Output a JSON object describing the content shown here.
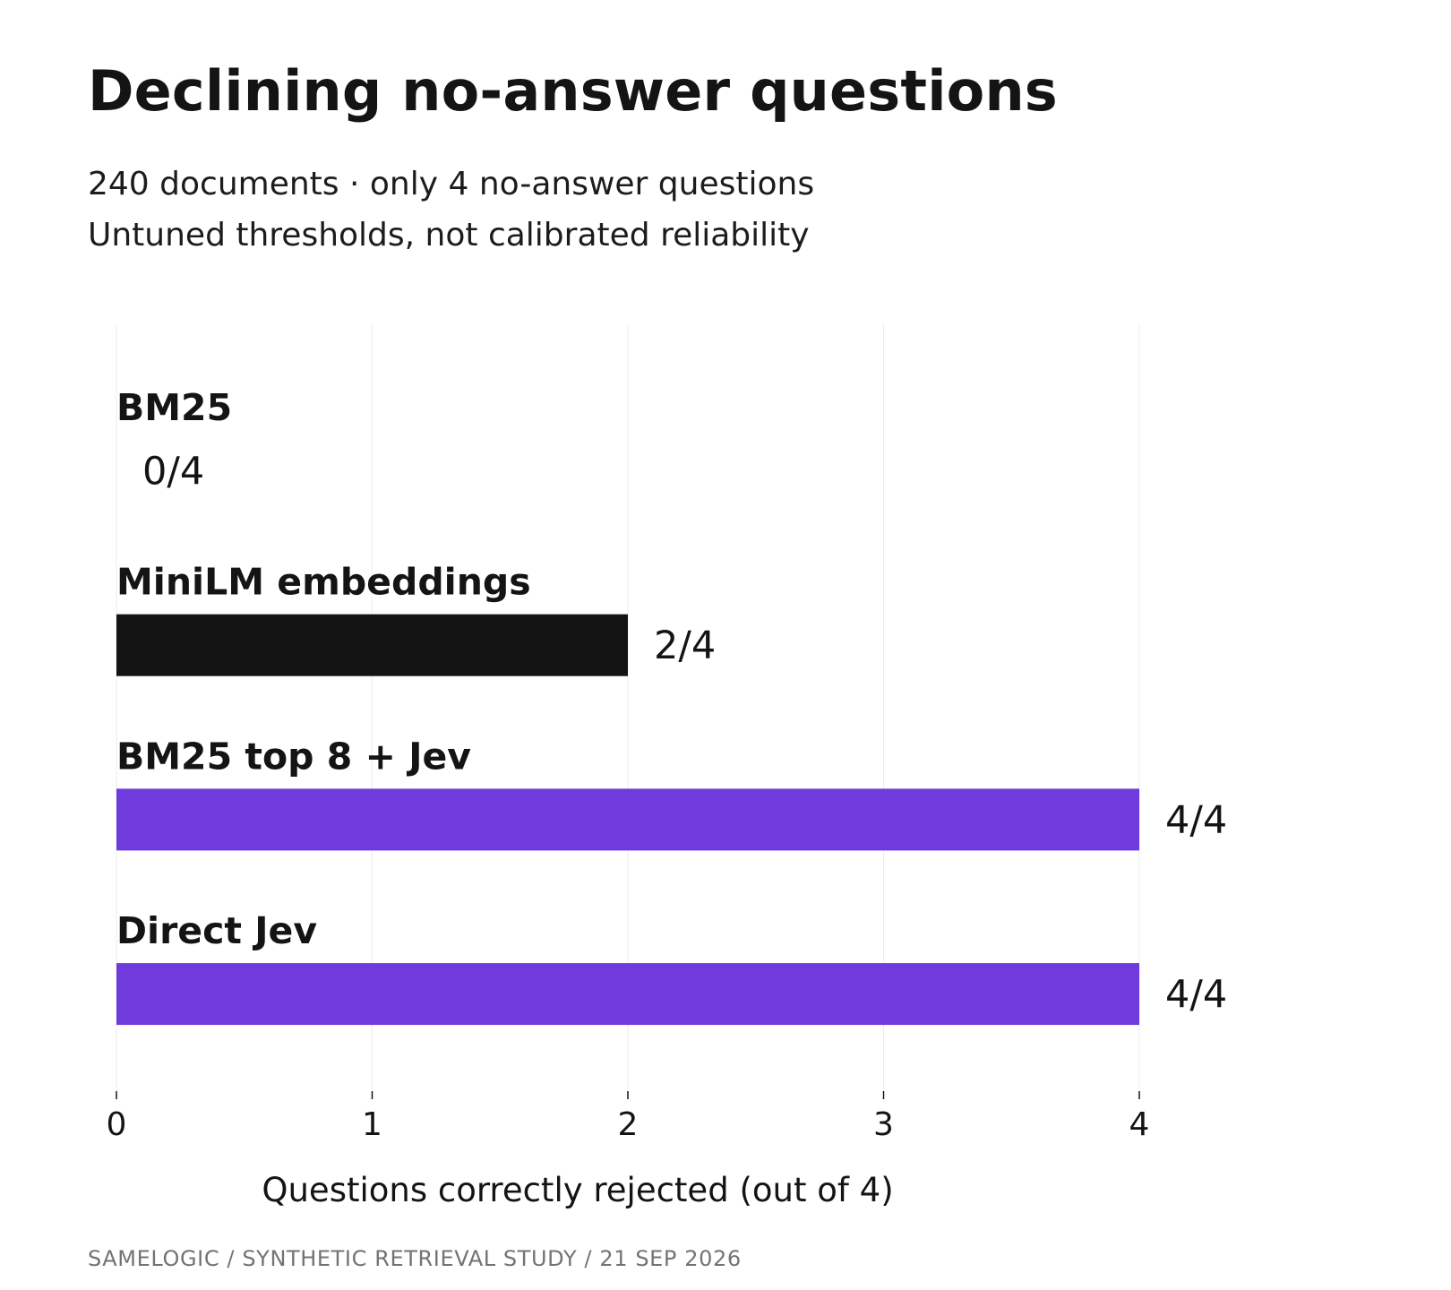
{
  "title": "Declining no-answer questions",
  "subtitle_lines": [
    "240 documents · only 4 no-answer questions",
    "Untuned thresholds, not calibrated reliability"
  ],
  "footer": "SAMELOGIC  /  SYNTHETIC RETRIEVAL STUDY  /  21 SEP 2026",
  "chart_data": {
    "type": "bar",
    "orientation": "horizontal",
    "categories": [
      "BM25",
      "MiniLM embeddings",
      "BM25 top 8 + Jev",
      "Direct Jev"
    ],
    "values": [
      0,
      2,
      4,
      4
    ],
    "value_labels": [
      "0/4",
      "2/4",
      "4/4",
      "4/4"
    ],
    "bar_colors": [
      "#141414",
      "#141414",
      "#6f3bdc",
      "#6f3bdc"
    ],
    "xlabel": "Questions correctly rejected (out of 4)",
    "xlim": [
      0,
      4
    ],
    "xticks": [
      0,
      1,
      2,
      3,
      4
    ],
    "grid": true,
    "legend": "none"
  },
  "colors": {
    "text": "#141414",
    "grid": "#ececec",
    "accent": "#6f3bdc",
    "footer": "#737373"
  }
}
